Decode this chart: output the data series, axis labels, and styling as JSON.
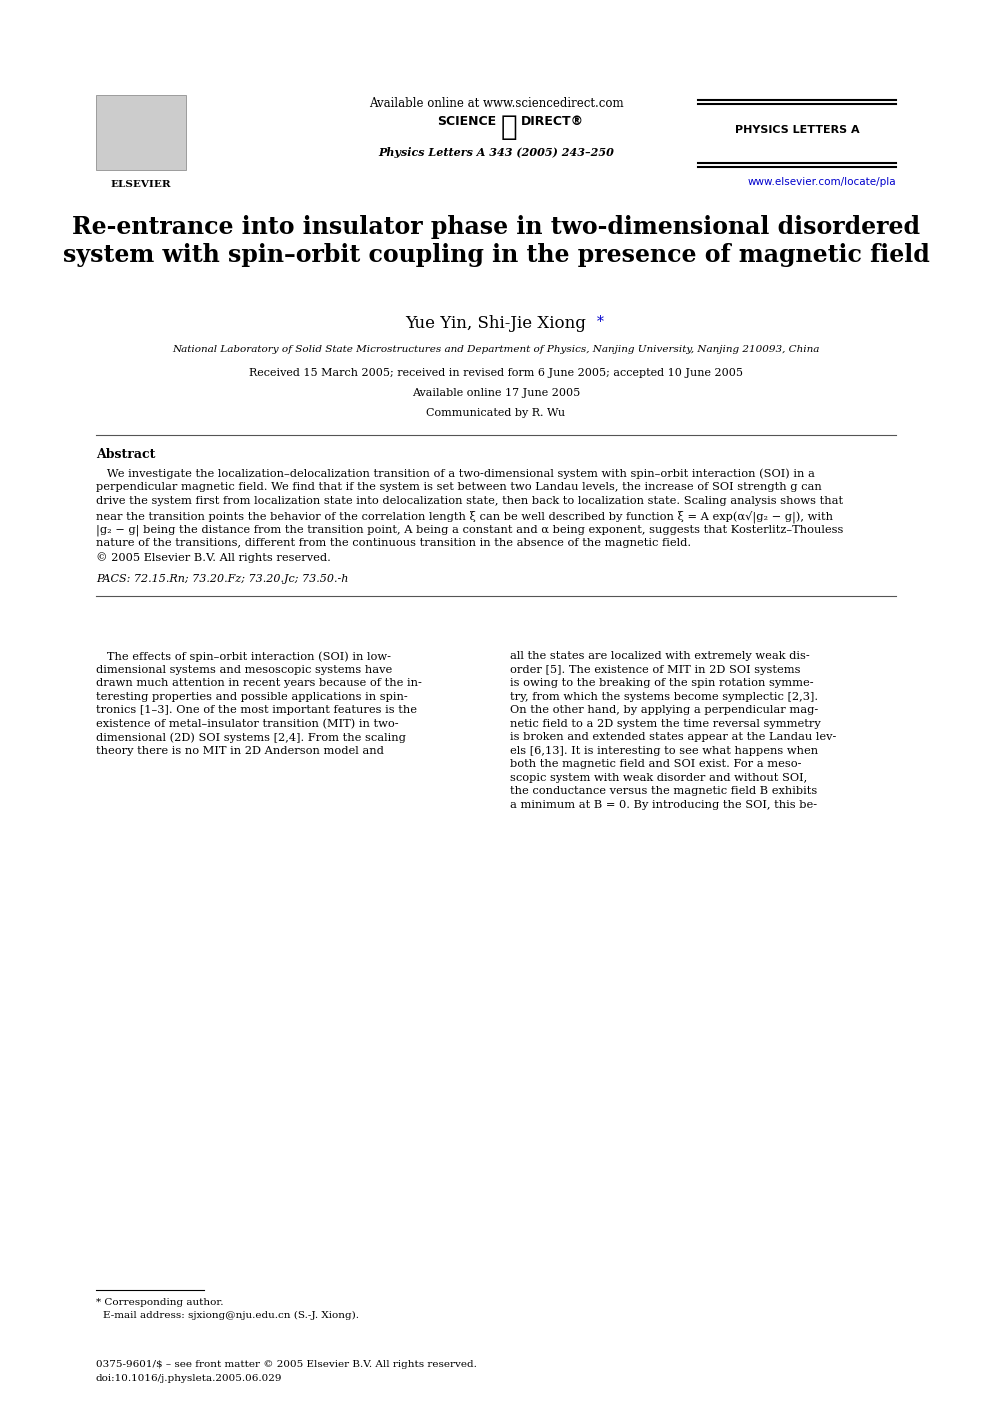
{
  "page_bg": "#ffffff",
  "header": {
    "available_online": "Available online at www.sciencedirect.com",
    "sciencedirect_label": "SCIENCE ⓐ DIRECT®",
    "journal_name": "PHYSICS LETTERS A",
    "physics_letters_cite": "Physics Letters A 343 (2005) 243–250",
    "url": "www.elsevier.com/locate/pla"
  },
  "title": "Re-entrance into insulator phase in two-dimensional disordered\nsystem with spin–orbit coupling in the presence of magnetic field",
  "authors": "Yue Yin, Shi-Jie Xiong*",
  "affiliation": "National Laboratory of Solid State Microstructures and Department of Physics, Nanjing University, Nanjing 210093, China",
  "dates": "Received 15 March 2005; received in revised form 6 June 2005; accepted 10 June 2005",
  "available_online_date": "Available online 17 June 2005",
  "communicated": "Communicated by R. Wu",
  "abstract_title": "Abstract",
  "abstract_text": "We investigate the localization–delocalization transition of a two-dimensional system with spin–orbit interaction (SOI) in a perpendicular magnetic field. We find that if the system is set between two Landau levels, the increase of SOI strength g can drive the system first from localization state into delocalization state, then back to localization state. Scaling analysis shows that near the transition points the behavior of the correlation length ξ can be well described by function ξ = A exp(α√|g₂ − g|), with |g₂ − g| being the distance from the transition point, A being a constant and α being exponent, suggests that Kosterlitz–Thouless nature of the transitions, different from the continuous transition in the absence of the magnetic field.\n© 2005 Elsevier B.V. All rights reserved.",
  "pacs": "PACS: 72.15.Rn; 73.20.Fz; 73.20.Jc; 73.50.-h",
  "body_col1": "The effects of spin–orbit interaction (SOI) in low-dimensional systems and mesoscopic systems have drawn much attention in recent years because of the interesting properties and possible applications in spintronics [1–3]. One of the most important features is the existence of metal–insulator transition (MIT) in two-dimensional (2D) SOI systems [2,4]. From the scaling theory there is no MIT in 2D Anderson model and",
  "body_col2": "all the states are localized with extremely weak disorder [5]. The existence of MIT in 2D SOI systems is owing to the breaking of the spin rotation symmetry, from which the systems become symplectic [2,3]. On the other hand, by applying a perpendicular magnetic field to a 2D system the time reversal symmetry is broken and extended states appear at the Landau levels [6,13]. It is interesting to see what happens when both the magnetic field and SOI exist. For a mesoscopic system with weak disorder and without SOI, the conductance versus the magnetic field B exhibits a minimum at B = 0. By introducing the SOI, this be-",
  "footnote": "* Corresponding author.\n  E-mail address: sjxiong@nju.edu.cn (S.-J. Xiong).",
  "footer_left": "0375-9601/$ – see front matter © 2005 Elsevier B.V. All rights reserved.\ndoi:10.1016/j.physleta.2005.06.029"
}
